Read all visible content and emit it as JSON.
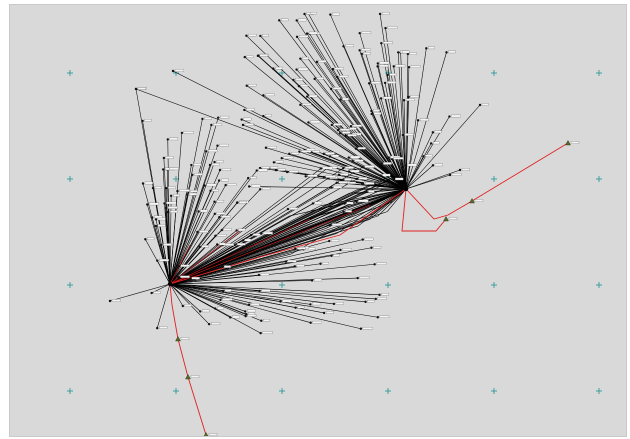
{
  "app": {
    "view": "network-graph-canvas"
  },
  "colors": {
    "background": "#d9d9d9",
    "grid_marker": "#2f9a9a",
    "edge_default": "#000000",
    "edge_route": "#e02020",
    "node_default": "#111111",
    "node_route": "#556b2f",
    "label": "#1a1a66"
  },
  "grid_markers": {
    "glyph": "+",
    "rows": 4,
    "cols": 6
  },
  "graph": {
    "hubs": [
      {
        "id": "hub-west"
      },
      {
        "id": "hub-east"
      }
    ],
    "route": {
      "description_visible": false
    }
  }
}
